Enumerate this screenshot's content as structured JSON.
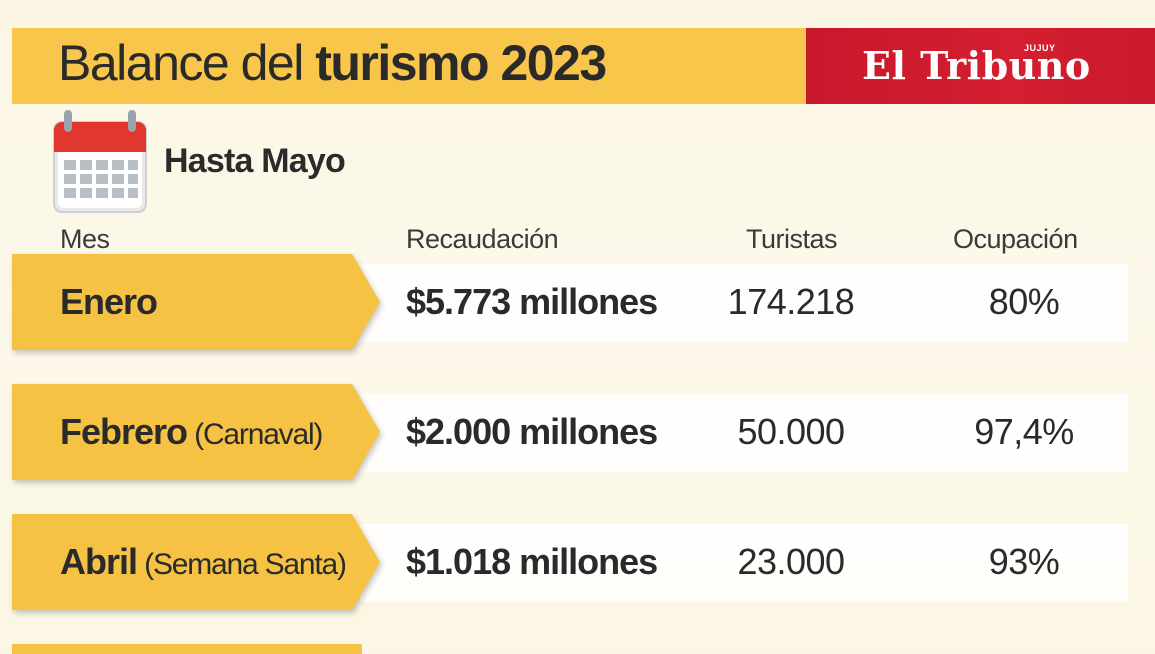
{
  "header": {
    "title_light": "Balance del ",
    "title_bold": "turismo 2023",
    "brand": "El Tribuno",
    "brand_tag": "JUJUY",
    "bar_color": "#f7c64a",
    "brand_color": "#d41f30"
  },
  "subtitle": "Hasta Mayo",
  "columns": {
    "mes": "Mes",
    "recaudacion": "Recaudación",
    "turistas": "Turistas",
    "ocupacion": "Ocupación"
  },
  "rows": [
    {
      "month": "Enero",
      "note": "",
      "recaudacion": "$5.773 millones",
      "turistas": "174.218",
      "ocupacion": "80%"
    },
    {
      "month": "Febrero",
      "note": " (Carnaval)",
      "recaudacion": "$2.000 millones",
      "turistas": "50.000",
      "ocupacion": "97,4%"
    },
    {
      "month": "Abril",
      "note": " (Semana Santa)",
      "recaudacion": "$1.018 millones",
      "turistas": "23.000",
      "ocupacion": "93%"
    }
  ],
  "icons": {
    "calendar": "calendar-icon"
  }
}
